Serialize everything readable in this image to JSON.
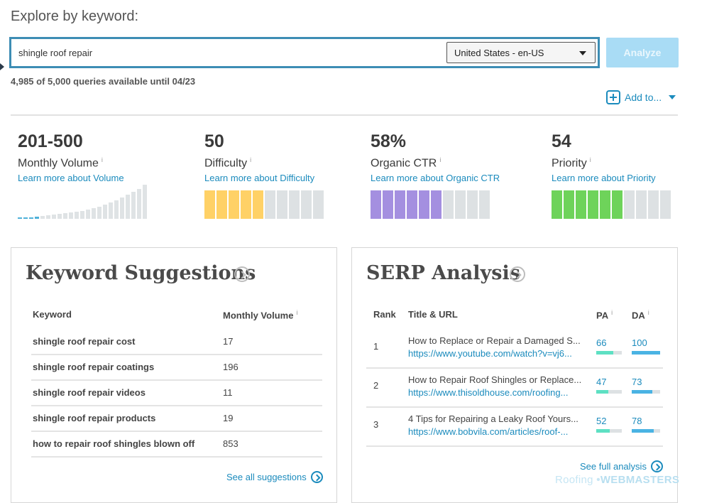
{
  "header": {
    "title": "Explore by keyword:"
  },
  "search": {
    "value": "shingle roof repair",
    "locale": "United States - en-US",
    "analyze_label": "Analyze"
  },
  "quota": "4,985 of 5,000 queries available until 04/23",
  "add_to": {
    "label": "Add to..."
  },
  "metrics": [
    {
      "value": "201-500",
      "label": "Monthly Volume",
      "info": "i",
      "link": "Learn more about Volume"
    },
    {
      "value": "50",
      "label": "Difficulty",
      "info": "i",
      "link": "Learn more about Difficulty",
      "segments_filled": 5,
      "segments_total": 10,
      "color": "#ffd166"
    },
    {
      "value": "58%",
      "label": "Organic CTR",
      "info": "i",
      "link": "Learn more about Organic CTR",
      "segments_filled": 6,
      "segments_total": 10,
      "color": "#a48fe0"
    },
    {
      "value": "54",
      "label": "Priority",
      "info": "i",
      "link": "Learn more about Priority",
      "segments_filled": 6,
      "segments_total": 10,
      "color": "#6ed35a"
    }
  ],
  "suggestions": {
    "title": "Keyword Suggestions",
    "col_keyword": "Keyword",
    "col_volume": "Monthly Volume",
    "info": "i",
    "rows": [
      {
        "keyword": "shingle roof repair cost",
        "volume": "17"
      },
      {
        "keyword": "shingle roof repair coatings",
        "volume": "196"
      },
      {
        "keyword": "shingle roof repair videos",
        "volume": "11"
      },
      {
        "keyword": "shingle roof repair products",
        "volume": "19"
      },
      {
        "keyword": "how to repair roof shingles blown off",
        "volume": "853"
      }
    ],
    "see_all": "See all suggestions"
  },
  "serp": {
    "title": "SERP Analysis",
    "col_rank": "Rank",
    "col_title": "Title & URL",
    "col_pa": "PA",
    "col_da": "DA",
    "info": "i",
    "rows": [
      {
        "rank": "1",
        "title": "How to Replace or Repair a Damaged S...",
        "url": "https://www.youtube.com/watch?v=vj6...",
        "pa": "66",
        "da": "100",
        "pa_fill": 0.66,
        "da_fill": 1.0
      },
      {
        "rank": "2",
        "title": "How to Repair Roof Shingles or Replace...",
        "url": "https://www.thisoldhouse.com/roofing...",
        "pa": "47",
        "da": "73",
        "pa_fill": 0.47,
        "da_fill": 0.73
      },
      {
        "rank": "3",
        "title": "4 Tips for Repairing a Leaky Roof Yours...",
        "url": "https://www.bobvila.com/articles/roof-...",
        "pa": "52",
        "da": "78",
        "pa_fill": 0.52,
        "da_fill": 0.78
      }
    ],
    "see_full": "See full analysis"
  },
  "watermark": {
    "a": "Roofing",
    "b": "WEBMASTERS"
  },
  "colors": {
    "accent": "#1b8bbd",
    "pa_bar": "#5ee0c3",
    "da_bar": "#4ab3e3"
  }
}
